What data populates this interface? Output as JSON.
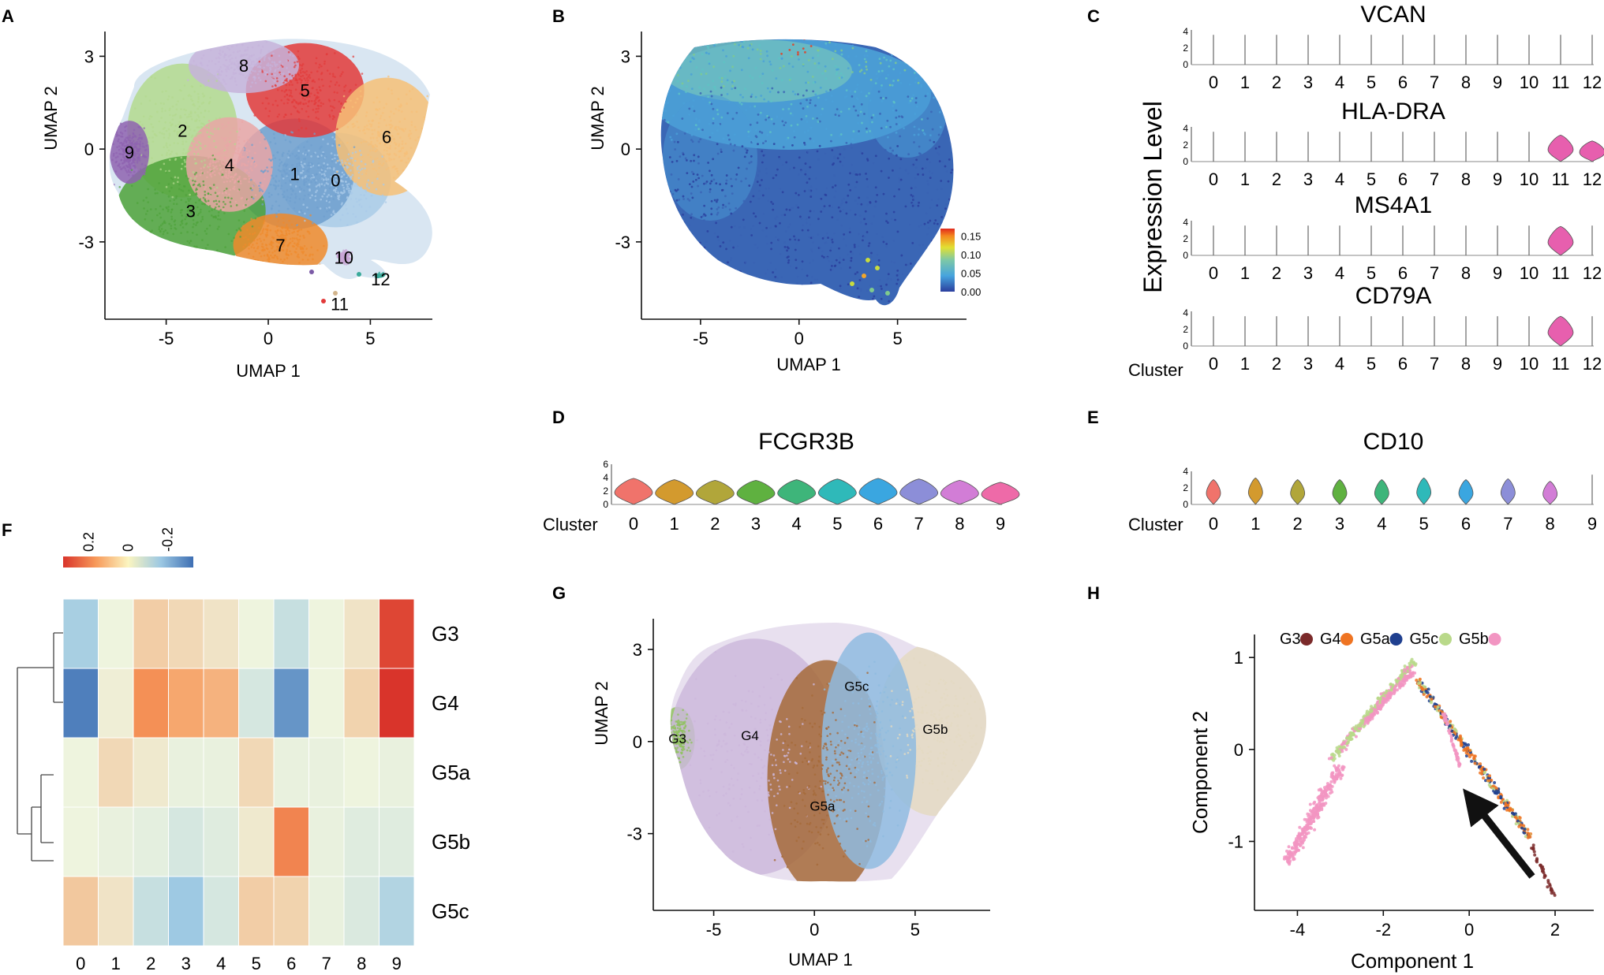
{
  "panel_letters": [
    "A",
    "B",
    "C",
    "D",
    "E",
    "F",
    "G",
    "H"
  ],
  "chart_data": [
    {
      "panel": "A",
      "type": "scatter",
      "title": "",
      "xlabel": "UMAP 1",
      "ylabel": "UMAP 2",
      "xlim": [
        -8,
        8.5
      ],
      "ylim": [
        -5.5,
        3.8
      ],
      "xticks": [
        "-5",
        "0",
        "5"
      ],
      "yticks": [
        "3",
        "0",
        "-3"
      ],
      "clusters": [
        {
          "name": "0",
          "x": 3.3,
          "y": -1.0,
          "color": "#a9cbe8"
        },
        {
          "name": "1",
          "x": 1.3,
          "y": -0.8,
          "color": "#6f9fce"
        },
        {
          "name": "2",
          "x": -4.2,
          "y": 0.6,
          "color": "#b3d98e"
        },
        {
          "name": "3",
          "x": -3.8,
          "y": -2.0,
          "color": "#4ea23a"
        },
        {
          "name": "4",
          "x": -1.9,
          "y": -0.5,
          "color": "#e9a6a6"
        },
        {
          "name": "5",
          "x": 1.8,
          "y": 1.9,
          "color": "#e23a3a"
        },
        {
          "name": "6",
          "x": 5.8,
          "y": 0.4,
          "color": "#f6bf77"
        },
        {
          "name": "7",
          "x": 0.6,
          "y": -3.1,
          "color": "#ef8a2c"
        },
        {
          "name": "8",
          "x": -1.2,
          "y": 2.7,
          "color": "#c6b3db"
        },
        {
          "name": "9",
          "x": -6.8,
          "y": -0.1,
          "color": "#8e63b0"
        },
        {
          "name": "10",
          "x": 3.7,
          "y": -3.5,
          "color": "#ffffff"
        },
        {
          "name": "11",
          "x": 3.5,
          "y": -5.0,
          "color": "#d2b48c"
        },
        {
          "name": "12",
          "x": 5.5,
          "y": -4.2,
          "color": "#3aaa9a"
        }
      ]
    },
    {
      "panel": "B",
      "type": "scatter",
      "title": "",
      "xlabel": "UMAP 1",
      "ylabel": "UMAP 2",
      "xlim": [
        -8,
        8.5
      ],
      "ylim": [
        -5.5,
        3.8
      ],
      "xticks": [
        "-5",
        "0",
        "5"
      ],
      "yticks": [
        "3",
        "0",
        "-3"
      ],
      "colorbar": {
        "ticks": [
          "0.15",
          "0.10",
          "0.05",
          "0.00"
        ],
        "min": 0.0,
        "max": 0.17
      }
    },
    {
      "panel": "C",
      "type": "violin",
      "ylabel": "Expression Level",
      "xlabel": "Cluster",
      "categories": [
        "0",
        "1",
        "2",
        "3",
        "4",
        "5",
        "6",
        "7",
        "8",
        "9",
        "10",
        "11",
        "12"
      ],
      "yticks": [
        "4",
        "2",
        "0"
      ],
      "series": [
        {
          "name": "VCAN",
          "values": [
            0,
            0,
            0,
            0,
            0,
            0,
            0,
            0,
            0,
            0,
            0,
            0,
            0
          ]
        },
        {
          "name": "HLA-DRA",
          "values": [
            0,
            0,
            0,
            0,
            0,
            0,
            0,
            0,
            0,
            0,
            0,
            3.2,
            2.5
          ]
        },
        {
          "name": "MS4A1",
          "values": [
            0,
            0,
            0,
            0,
            0,
            0,
            0,
            0,
            0,
            0,
            0,
            3.5,
            0
          ]
        },
        {
          "name": "CD79A",
          "values": [
            0,
            0,
            0,
            0,
            0,
            0,
            0,
            0,
            0,
            0,
            0,
            3.6,
            0
          ]
        }
      ]
    },
    {
      "panel": "D",
      "type": "violin",
      "title": "FCGR3B",
      "xlabel": "Cluster",
      "categories": [
        "0",
        "1",
        "2",
        "3",
        "4",
        "5",
        "6",
        "7",
        "8",
        "9"
      ],
      "yticks": [
        "6",
        "4",
        "2",
        "0"
      ],
      "values": [
        3.9,
        3.7,
        3.6,
        3.6,
        3.7,
        3.8,
        3.9,
        3.8,
        3.6,
        3.3
      ]
    },
    {
      "panel": "E",
      "type": "violin",
      "title": "CD10",
      "xlabel": "Cluster",
      "categories": [
        "0",
        "1",
        "2",
        "3",
        "4",
        "5",
        "6",
        "7",
        "8",
        "9"
      ],
      "yticks": [
        "4",
        "2",
        "0"
      ],
      "values": [
        3.0,
        3.2,
        3.0,
        3.0,
        3.0,
        3.2,
        3.0,
        3.1,
        2.8,
        0
      ]
    },
    {
      "panel": "F",
      "type": "heatmap",
      "columns": [
        "0",
        "1",
        "2",
        "3",
        "4",
        "5",
        "6",
        "7",
        "8",
        "9"
      ],
      "rows": [
        "G3",
        "G4",
        "G5a",
        "G5b",
        "G5c"
      ],
      "colorbar_ticks": [
        "0.2",
        "0",
        "-0.2"
      ],
      "values": [
        [
          -0.14,
          0.0,
          0.07,
          0.05,
          0.03,
          0.0,
          -0.08,
          0.0,
          0.03,
          0.3
        ],
        [
          -0.3,
          0.01,
          0.18,
          0.14,
          0.12,
          -0.05,
          -0.26,
          0.0,
          0.06,
          0.33
        ],
        [
          0.0,
          0.05,
          0.02,
          -0.01,
          -0.01,
          0.05,
          -0.01,
          -0.01,
          0.0,
          -0.01
        ],
        [
          0.0,
          -0.01,
          -0.02,
          -0.05,
          -0.03,
          0.02,
          0.2,
          -0.01,
          -0.03,
          -0.03
        ],
        [
          0.08,
          0.03,
          -0.08,
          -0.16,
          -0.05,
          0.07,
          0.06,
          -0.01,
          -0.04,
          -0.12
        ]
      ]
    },
    {
      "panel": "G",
      "type": "scatter",
      "xlabel": "UMAP 1",
      "ylabel": "UMAP 2",
      "xlim": [
        -8,
        9
      ],
      "ylim": [
        -5.5,
        4.0
      ],
      "xticks": [
        "-5",
        "0",
        "5"
      ],
      "yticks": [
        "3",
        "0",
        "-3"
      ],
      "groups": [
        {
          "name": "G3",
          "x": -6.8,
          "y": 0.1,
          "color": "#8fc25e"
        },
        {
          "name": "G4",
          "x": -3.2,
          "y": 0.2,
          "color": "#cdb8dc"
        },
        {
          "name": "G5a",
          "x": 0.4,
          "y": -2.1,
          "color": "#a66a3a"
        },
        {
          "name": "G5b",
          "x": 6.0,
          "y": 0.4,
          "color": "#e4d9c2"
        },
        {
          "name": "G5c",
          "x": 2.1,
          "y": 1.8,
          "color": "#8fbbe0"
        }
      ]
    },
    {
      "panel": "H",
      "type": "scatter",
      "xlabel": "Component 1",
      "ylabel": "Component 2",
      "xlim": [
        -5.0,
        2.9
      ],
      "ylim": [
        -1.75,
        1.25
      ],
      "xticks": [
        "-4",
        "-2",
        "0",
        "2"
      ],
      "yticks": [
        "1",
        "0",
        "-1"
      ],
      "legend": [
        {
          "name": "G3",
          "color": "#7b2a2a"
        },
        {
          "name": "G4",
          "color": "#ef7422"
        },
        {
          "name": "G5a",
          "color": "#1f3f8f"
        },
        {
          "name": "G5c",
          "color": "#b9d98a"
        },
        {
          "name": "G5b",
          "color": "#f295c2"
        }
      ]
    }
  ]
}
